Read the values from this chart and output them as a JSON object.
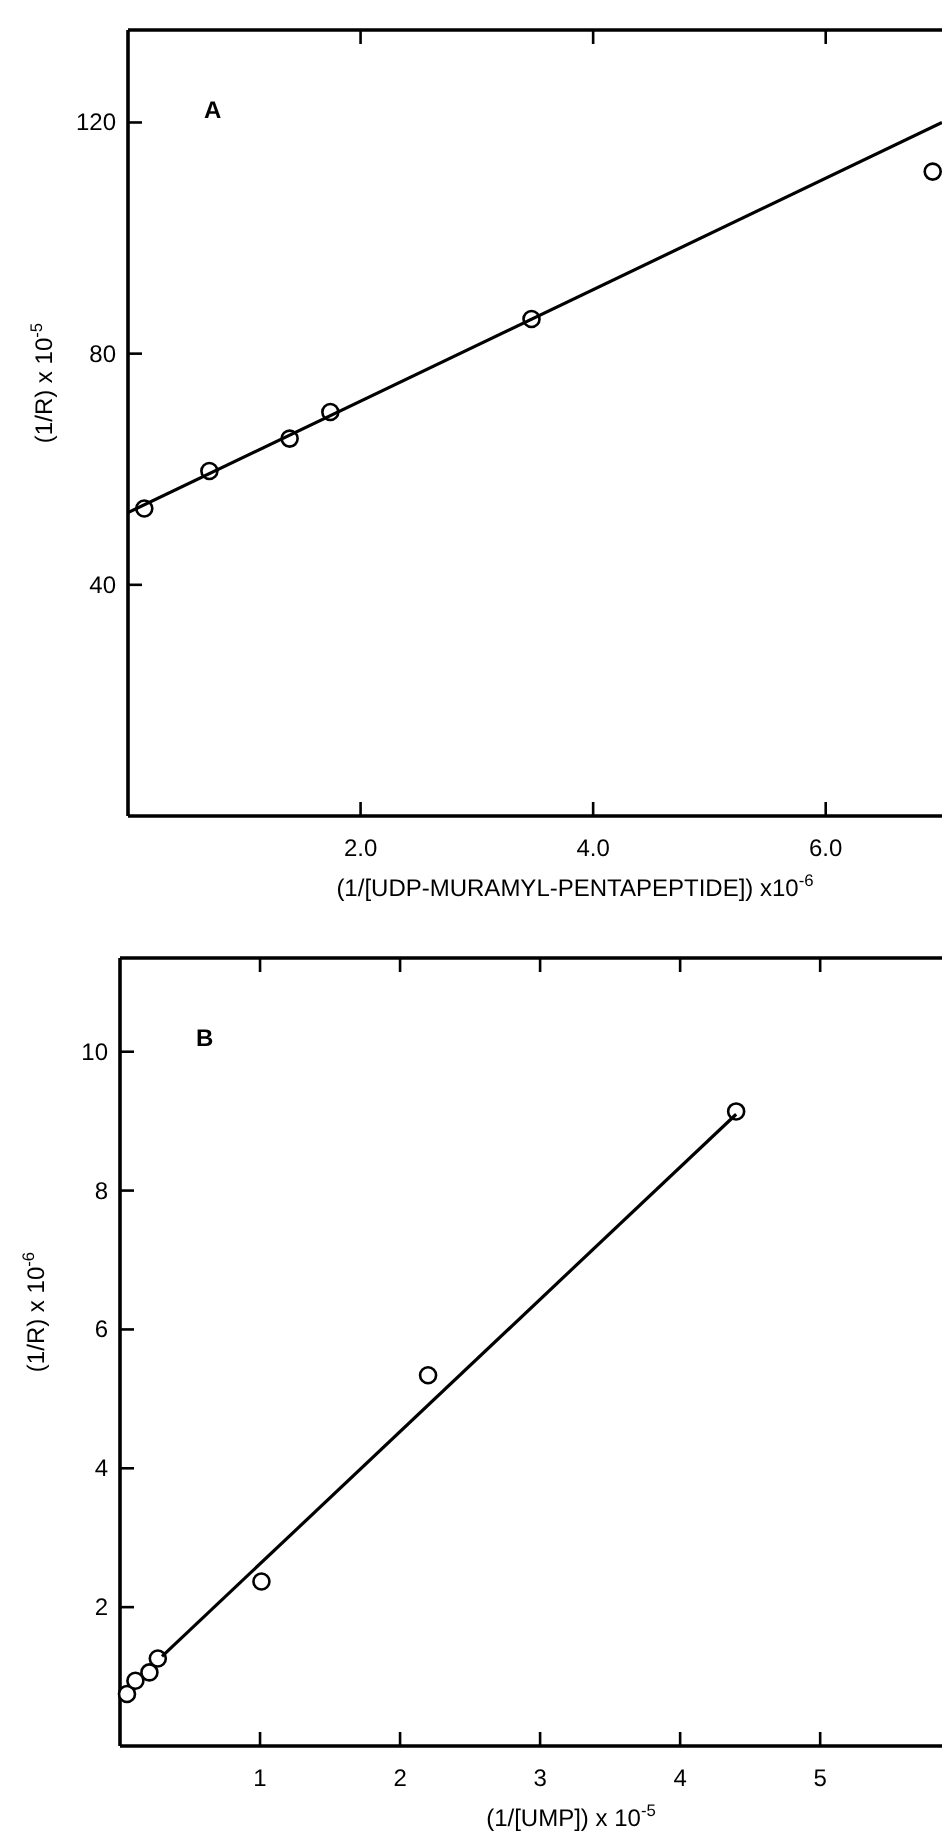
{
  "chart_data": [
    {
      "type": "scatter",
      "annotations": [
        "A"
      ],
      "xlabel": "(1/[UDP-MURAMYL-PENTAPEPTIDE]) x10$^{-6}$",
      "ylabel": "(1/R) x 10$^{-5}$",
      "xlim": [
        0,
        7
      ],
      "ylim": [
        0,
        136
      ],
      "xticks": [
        {
          "value": 2,
          "label": "2.0"
        },
        {
          "value": 4,
          "label": "4.0"
        },
        {
          "value": 6,
          "label": "6.0"
        }
      ],
      "yticks": [
        40,
        80,
        120
      ],
      "grid": false,
      "series": [
        {
          "color": "#000000",
          "marker": "circle",
          "x": [
            0.14,
            0.7,
            1.39,
            1.74,
            3.47,
            6.92
          ],
          "values": [
            53.2,
            59.7,
            65.3,
            69.9,
            86.0,
            111.5
          ]
        },
        {
          "type": "line",
          "color": "#000000",
          "marker": "none",
          "line_style": "solid",
          "x": [
            0,
            7
          ],
          "values": [
            52.5,
            120
          ]
        }
      ]
    },
    {
      "type": "scatter",
      "annotations": [
        "B"
      ],
      "xlabel": "(1/[UMP]) x 10$^{-5}$",
      "ylabel": "(1/R) x 10$^{-6}$",
      "xlim": [
        0,
        5.87
      ],
      "ylim": [
        0,
        11.35
      ],
      "xticks": [
        1,
        2,
        3,
        4,
        5
      ],
      "yticks": [
        2,
        4,
        6,
        8,
        10
      ],
      "grid": false,
      "series": [
        {
          "color": "#000000",
          "marker": "circle",
          "x": [
            0.05,
            0.11,
            0.21,
            0.27,
            1.01,
            2.2,
            4.4
          ],
          "values": [
            0.75,
            0.94,
            1.06,
            1.26,
            2.37,
            5.34,
            9.14
          ]
        },
        {
          "type": "line",
          "color": "#000000",
          "marker": "none",
          "line_style": "solid",
          "x": [
            0.3,
            4.4
          ],
          "values": [
            1.29,
            9.1
          ]
        }
      ]
    }
  ]
}
